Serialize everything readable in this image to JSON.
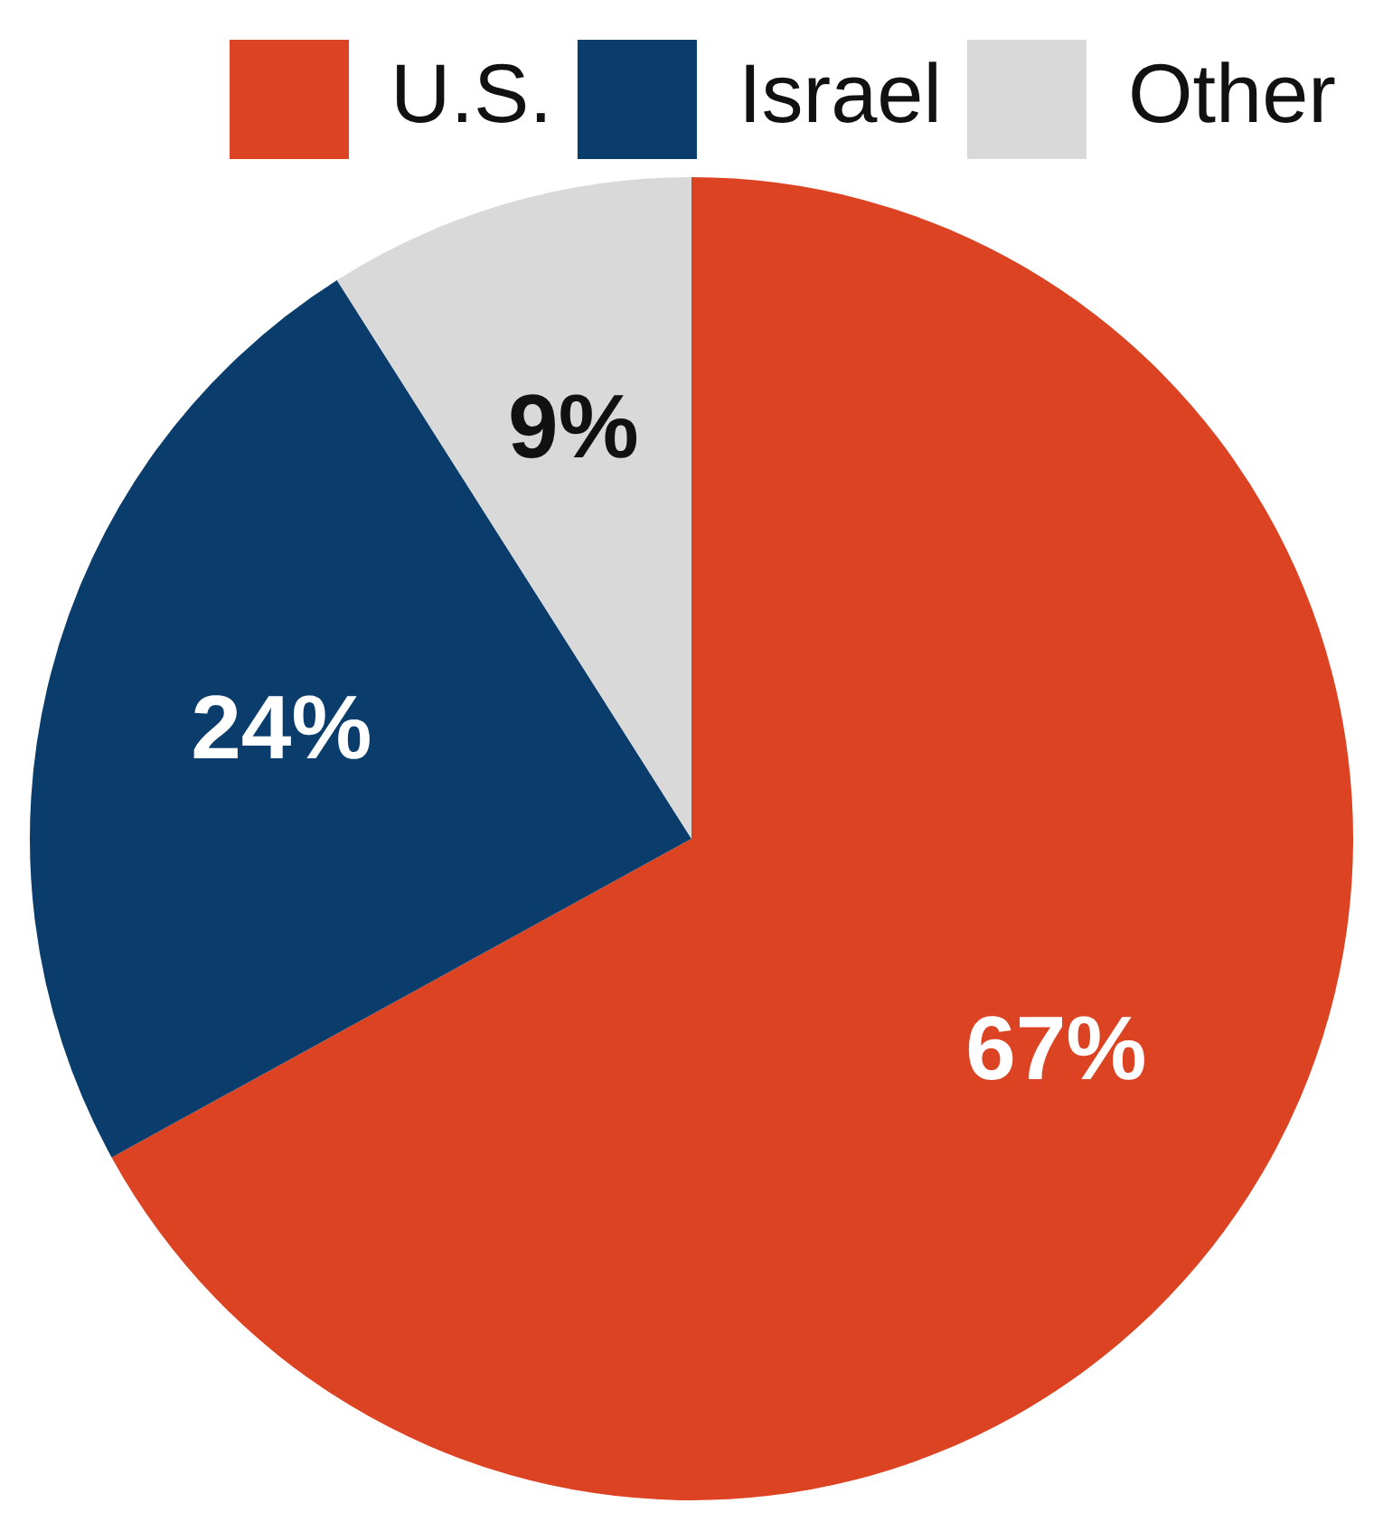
{
  "chart_data": {
    "type": "pie",
    "categories": [
      "U.S.",
      "Israel",
      "Other"
    ],
    "values": [
      67,
      24,
      9
    ],
    "colors": [
      "#dc4323",
      "#0a3d6b",
      "#d9d9d9"
    ],
    "value_labels": [
      "67%",
      "24%",
      "9%"
    ],
    "legend": "top right"
  }
}
